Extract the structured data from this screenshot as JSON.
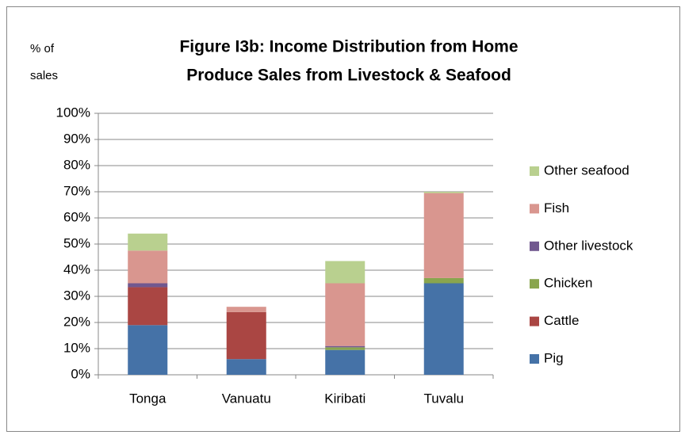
{
  "chart_data": {
    "type": "stacked_bar",
    "title_lines": [
      "Figure I3b: Income Distribution  from Home",
      "Produce Sales from Livestock & Seafood"
    ],
    "y_label_lines": [
      "% of",
      "sales"
    ],
    "categories": [
      "Tonga",
      "Vanuatu",
      "Kiribati",
      "Tuvalu"
    ],
    "series": [
      {
        "name": "Pig",
        "color": "#4572a7",
        "values": [
          19,
          6,
          9.5,
          35
        ]
      },
      {
        "name": "Cattle",
        "color": "#aa4643",
        "values": [
          14.5,
          18,
          0,
          0
        ]
      },
      {
        "name": "Chicken",
        "color": "#89a54e",
        "values": [
          0,
          0,
          1,
          2
        ]
      },
      {
        "name": "Other livestock",
        "color": "#71588f",
        "values": [
          1.5,
          0,
          0.5,
          0
        ]
      },
      {
        "name": "Fish",
        "color": "#d9968f",
        "values": [
          12.5,
          2,
          24,
          32.5
        ]
      },
      {
        "name": "Other seafood",
        "color": "#b9d08f",
        "values": [
          6.5,
          0,
          8.5,
          0.5
        ]
      }
    ],
    "ylim": [
      0,
      100
    ],
    "yticks": [
      {
        "value": 0,
        "label": "0%"
      },
      {
        "value": 10,
        "label": "10%"
      },
      {
        "value": 20,
        "label": "20%"
      },
      {
        "value": 30,
        "label": "30%"
      },
      {
        "value": 40,
        "label": "40%"
      },
      {
        "value": 50,
        "label": "50%"
      },
      {
        "value": 60,
        "label": "60%"
      },
      {
        "value": 70,
        "label": "70%"
      },
      {
        "value": 80,
        "label": "80%"
      },
      {
        "value": 90,
        "label": "90%"
      },
      {
        "value": 100,
        "label": "100%"
      }
    ],
    "grid": true,
    "legend": "right"
  }
}
